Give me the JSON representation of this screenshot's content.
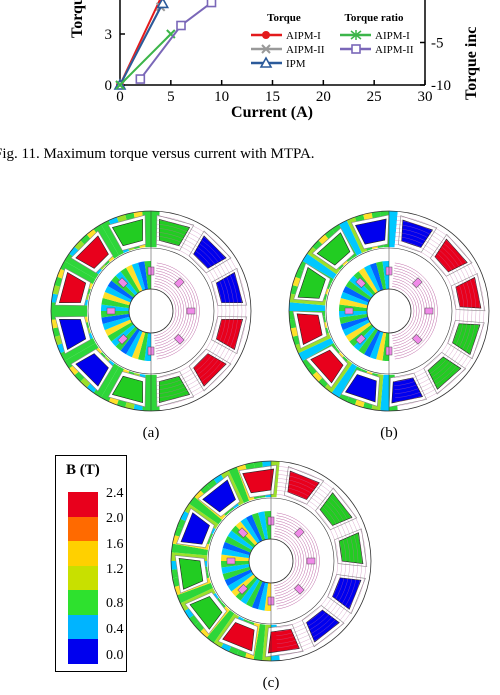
{
  "chart_data": {
    "type": "line",
    "xlabel": "Current (A)",
    "ylabel_left": "Torque",
    "ylabel_right": "Torque inc",
    "x_ticks": [
      "0",
      "5",
      "10",
      "15",
      "20",
      "25",
      "30"
    ],
    "y_left_ticks": [
      "0",
      "3"
    ],
    "y_right_ticks": [
      "-5",
      "-10"
    ],
    "xlim": [
      0,
      30
    ],
    "ylim_left": [
      0,
      5
    ],
    "ylim_right": [
      -10,
      0
    ],
    "legend": {
      "torque_heading": "Torque",
      "ratio_heading": "Torque ratio",
      "torque_series": [
        "AIPM-I",
        "AIPM-II",
        "IPM"
      ],
      "ratio_series": [
        "AIPM-I",
        "AIPM-II"
      ]
    },
    "series": [
      {
        "name": "AIPM-I",
        "axis": "left",
        "color": "#e31a1c",
        "marker": "circle",
        "x": [
          0,
          4
        ],
        "y": [
          0,
          5.1
        ]
      },
      {
        "name": "AIPM-II",
        "axis": "left",
        "color": "#999999",
        "marker": "x",
        "x": [
          0,
          4
        ],
        "y": [
          0,
          4.6
        ]
      },
      {
        "name": "IPM",
        "axis": "left",
        "color": "#2b5a9a",
        "marker": "triangle",
        "x": [
          0,
          4.2
        ],
        "y": [
          0,
          4.8
        ]
      },
      {
        "name": "AIPM-I",
        "axis": "right",
        "color": "#3cb54a",
        "marker": "asterisk",
        "x": [
          0,
          5
        ],
        "y": [
          -10,
          -4
        ]
      },
      {
        "name": "AIPM-II",
        "axis": "right",
        "color": "#7a67b8",
        "marker": "square",
        "x": [
          2,
          6,
          9
        ],
        "y": [
          -9.3,
          -3.0,
          -0.3
        ]
      }
    ]
  },
  "caption": "Fig. 11.    Maximum torque versus current with MTPA.",
  "subfigures": [
    "(a)",
    "(b)",
    "(c)"
  ],
  "colorbar": {
    "title": "B (T)",
    "ticks": [
      "2.4",
      "2.0",
      "1.6",
      "1.2",
      "0.8",
      "0.4",
      "0.0"
    ],
    "colors": [
      "#e8001c",
      "#ff6a00",
      "#ffd000",
      "#c8e000",
      "#2ee12e",
      "#00b4ff",
      "#0000ee"
    ]
  }
}
